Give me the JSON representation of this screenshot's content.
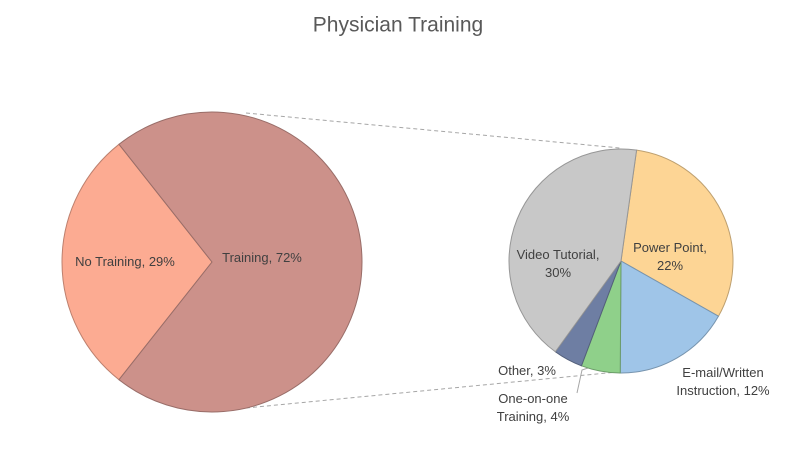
{
  "chart_data": {
    "type": "pie-of-pie",
    "title": "Physician Training",
    "categories": [
      "No Training",
      "Training"
    ],
    "values": [
      29,
      72
    ],
    "value_labels": [
      "No Training, 29%",
      "Training, 72%"
    ],
    "colors": [
      "#fcab92",
      "#cc918a"
    ],
    "breakdown": {
      "categories": [
        "Power Point",
        "E-mail/Written Instruction",
        "One-on-one Training",
        "Other",
        "Video Tutorial"
      ],
      "values": [
        22,
        12,
        4,
        3,
        30
      ],
      "value_labels": [
        "Power Point, 22%",
        "E-mail/Written Instruction, 12%",
        "One-on-one Training, 4%",
        "Other, 3%",
        "Video Tutorial, 30%"
      ],
      "colors": [
        "#fdd595",
        "#9fc5e8",
        "#8fd08a",
        "#6e7ea3",
        "#c8c8c8"
      ]
    }
  }
}
